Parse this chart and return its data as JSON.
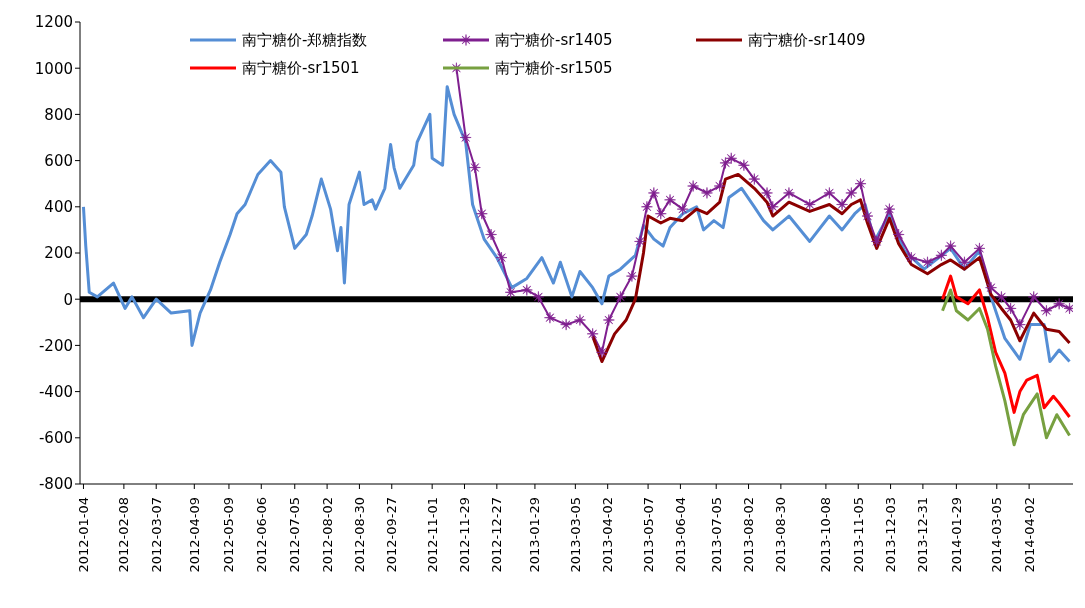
{
  "chart_data": {
    "type": "line",
    "xlim": [
      "2012-01-01",
      "2014-05-10"
    ],
    "xticks": [
      "2012-01-04",
      "2012-02-08",
      "2012-03-07",
      "2012-04-09",
      "2012-05-09",
      "2012-06-06",
      "2012-07-05",
      "2012-08-02",
      "2012-08-30",
      "2012-09-27",
      "2012-11-01",
      "2012-11-29",
      "2012-12-27",
      "2013-01-29",
      "2013-03-05",
      "2013-04-02",
      "2013-05-07",
      "2013-06-04",
      "2013-07-05",
      "2013-08-02",
      "2013-08-30",
      "2013-10-08",
      "2013-11-05",
      "2013-12-03",
      "2013-12-31",
      "2014-01-29",
      "2014-03-05",
      "2014-04-02"
    ],
    "ylim": [
      -800,
      1200
    ],
    "yticks": [
      -800,
      -600,
      -400,
      -200,
      0,
      200,
      400,
      600,
      800,
      1000,
      1200
    ],
    "grid": false,
    "legend": "top",
    "marker": "none",
    "line_style": "solid",
    "ref_lines": [
      {
        "axis": "y",
        "value": 0,
        "color": "#000000"
      }
    ],
    "series": [
      {
        "name": "南宁糖价-郑糖指数",
        "color": "#558ed5",
        "x": [
          "2012-01-04",
          "2012-01-06",
          "2012-01-09",
          "2012-01-16",
          "2012-01-30",
          "2012-02-09",
          "2012-02-15",
          "2012-02-25",
          "2012-03-07",
          "2012-03-20",
          "2012-04-05",
          "2012-04-07",
          "2012-04-14",
          "2012-04-23",
          "2012-05-01",
          "2012-05-10",
          "2012-05-16",
          "2012-05-23",
          "2012-06-03",
          "2012-06-14",
          "2012-06-23",
          "2012-06-26",
          "2012-07-05",
          "2012-07-15",
          "2012-07-20",
          "2012-07-28",
          "2012-08-05",
          "2012-08-11",
          "2012-08-14",
          "2012-08-17",
          "2012-08-21",
          "2012-08-30",
          "2012-09-03",
          "2012-09-10",
          "2012-09-13",
          "2012-09-21",
          "2012-09-26",
          "2012-09-29",
          "2012-10-04",
          "2012-10-16",
          "2012-10-19",
          "2012-10-30",
          "2012-11-01",
          "2012-11-10",
          "2012-11-14",
          "2012-11-20",
          "2012-11-30",
          "2012-12-06",
          "2012-12-16",
          "2012-12-27",
          "2013-01-09",
          "2013-01-22",
          "2013-02-04",
          "2013-02-14",
          "2013-02-20",
          "2013-03-02",
          "2013-03-09",
          "2013-03-20",
          "2013-03-28",
          "2013-04-03",
          "2013-04-13",
          "2013-04-26",
          "2013-05-03",
          "2013-05-12",
          "2013-05-20",
          "2013-05-26",
          "2013-06-06",
          "2013-06-18",
          "2013-06-24",
          "2013-07-03",
          "2013-07-11",
          "2013-07-16",
          "2013-07-27",
          "2013-08-07",
          "2013-08-15",
          "2013-08-23",
          "2013-09-06",
          "2013-09-24",
          "2013-10-11",
          "2013-10-22",
          "2013-11-02",
          "2013-11-11",
          "2013-11-19",
          "2013-12-02",
          "2013-12-15",
          "2014-01-01",
          "2014-01-24",
          "2014-02-05",
          "2014-02-18",
          "2014-02-28",
          "2014-03-12",
          "2014-03-25",
          "2014-04-03",
          "2014-04-15",
          "2014-04-20",
          "2014-04-28",
          "2014-05-07"
        ],
        "values": [
          400,
          230,
          30,
          10,
          70,
          -40,
          10,
          -80,
          0,
          -60,
          -50,
          -200,
          -60,
          40,
          160,
          280,
          370,
          410,
          540,
          600,
          550,
          400,
          220,
          280,
          360,
          520,
          390,
          210,
          310,
          70,
          410,
          550,
          410,
          430,
          390,
          480,
          670,
          570,
          480,
          580,
          680,
          800,
          610,
          580,
          920,
          800,
          680,
          410,
          260,
          180,
          50,
          90,
          180,
          70,
          160,
          10,
          120,
          50,
          -20,
          100,
          130,
          190,
          320,
          260,
          230,
          310,
          370,
          400,
          300,
          340,
          310,
          440,
          480,
          400,
          340,
          300,
          360,
          250,
          360,
          300,
          370,
          410,
          250,
          370,
          210,
          130,
          220,
          130,
          210,
          10,
          -170,
          -260,
          -110,
          -110,
          -270,
          -220,
          -270
        ]
      },
      {
        "name": "南宁糖价-sr1405",
        "color": "#7f1f8f",
        "marker": "star",
        "x": [
          "2012-11-22",
          "2012-11-30",
          "2012-12-08",
          "2012-12-14",
          "2012-12-22",
          "2012-12-31",
          "2013-01-08",
          "2013-01-22",
          "2013-02-01",
          "2013-02-11",
          "2013-02-25",
          "2013-03-09",
          "2013-03-20",
          "2013-03-28",
          "2013-04-03",
          "2013-04-13",
          "2013-04-23",
          "2013-04-30",
          "2013-05-06",
          "2013-05-12",
          "2013-05-18",
          "2013-05-26",
          "2013-06-06",
          "2013-06-15",
          "2013-06-27",
          "2013-07-08",
          "2013-07-13",
          "2013-07-18",
          "2013-07-29",
          "2013-08-07",
          "2013-08-18",
          "2013-08-23",
          "2013-09-06",
          "2013-09-24",
          "2013-10-11",
          "2013-10-22",
          "2013-10-30",
          "2013-11-07",
          "2013-11-13",
          "2013-11-21",
          "2013-12-02",
          "2013-12-10",
          "2013-12-21",
          "2014-01-04",
          "2014-01-16",
          "2014-01-24",
          "2014-02-05",
          "2014-02-18",
          "2014-02-28",
          "2014-03-09",
          "2014-03-17",
          "2014-03-25",
          "2014-04-06",
          "2014-04-17",
          "2014-04-28",
          "2014-05-07"
        ],
        "values": [
          1000,
          700,
          570,
          370,
          280,
          180,
          30,
          40,
          10,
          -80,
          -110,
          -90,
          -150,
          -230,
          -90,
          10,
          100,
          250,
          400,
          460,
          370,
          430,
          390,
          490,
          460,
          490,
          590,
          610,
          580,
          520,
          460,
          400,
          460,
          410,
          460,
          410,
          460,
          500,
          360,
          250,
          390,
          280,
          180,
          160,
          190,
          230,
          160,
          220,
          50,
          10,
          -40,
          -110,
          10,
          -50,
          -20,
          -40
        ]
      },
      {
        "name": "南宁糖价-sr1409",
        "color": "#8b0000",
        "x": [
          "2013-03-20",
          "2013-03-28",
          "2013-04-08",
          "2013-04-18",
          "2013-04-26",
          "2013-05-03",
          "2013-05-07",
          "2013-05-18",
          "2013-05-26",
          "2013-06-06",
          "2013-06-18",
          "2013-06-27",
          "2013-07-08",
          "2013-07-13",
          "2013-07-24",
          "2013-08-07",
          "2013-08-18",
          "2013-08-23",
          "2013-09-06",
          "2013-09-24",
          "2013-10-11",
          "2013-10-22",
          "2013-10-30",
          "2013-11-07",
          "2013-11-13",
          "2013-11-21",
          "2013-12-02",
          "2013-12-10",
          "2013-12-21",
          "2014-01-04",
          "2014-01-16",
          "2014-01-24",
          "2014-02-05",
          "2014-02-18",
          "2014-02-28",
          "2014-03-09",
          "2014-03-17",
          "2014-03-25",
          "2014-04-06",
          "2014-04-17",
          "2014-04-28",
          "2014-05-07"
        ],
        "values": [
          -160,
          -270,
          -150,
          -90,
          0,
          200,
          360,
          330,
          350,
          340,
          390,
          370,
          420,
          520,
          540,
          480,
          420,
          360,
          420,
          380,
          410,
          370,
          410,
          430,
          330,
          220,
          350,
          240,
          150,
          110,
          150,
          170,
          130,
          180,
          20,
          -40,
          -90,
          -180,
          -60,
          -130,
          -140,
          -190
        ]
      },
      {
        "name": "南宁糖价-sr1501",
        "color": "#ff0000",
        "x": [
          "2014-01-17",
          "2014-01-24",
          "2014-01-29",
          "2014-02-08",
          "2014-02-18",
          "2014-02-25",
          "2014-03-04",
          "2014-03-12",
          "2014-03-20",
          "2014-03-25",
          "2014-03-31",
          "2014-04-09",
          "2014-04-15",
          "2014-04-23",
          "2014-04-28",
          "2014-05-07"
        ],
        "values": [
          0,
          100,
          10,
          -20,
          40,
          -80,
          -230,
          -320,
          -490,
          -400,
          -350,
          -330,
          -470,
          -420,
          -450,
          -510
        ]
      },
      {
        "name": "南宁糖价-sr1505",
        "color": "#77a040",
        "x": [
          "2014-01-17",
          "2014-01-24",
          "2014-01-29",
          "2014-02-08",
          "2014-02-18",
          "2014-02-25",
          "2014-03-04",
          "2014-03-12",
          "2014-03-20",
          "2014-03-28",
          "2014-04-09",
          "2014-04-17",
          "2014-04-26",
          "2014-05-07"
        ],
        "values": [
          -50,
          40,
          -50,
          -90,
          -40,
          -130,
          -290,
          -440,
          -630,
          -500,
          -410,
          -600,
          -500,
          -590
        ]
      }
    ]
  }
}
